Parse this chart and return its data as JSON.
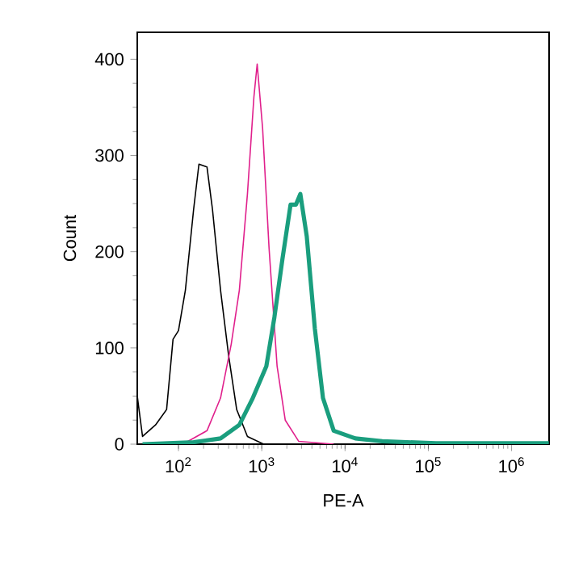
{
  "chart_data": {
    "type": "line",
    "xlabel": "PE-A",
    "ylabel": "Count",
    "log": "x",
    "xlim": [
      32,
      2820000
    ],
    "ylim": [
      0,
      428
    ],
    "xticks": [
      {
        "value": 100,
        "label": "10$^{2}$"
      },
      {
        "value": 1000,
        "label": "10$^{3}$"
      },
      {
        "value": 10000,
        "label": "10$^{4}$"
      },
      {
        "value": 100000,
        "label": "10$^{5}$"
      },
      {
        "value": 1000000,
        "label": "10$^{6}$"
      }
    ],
    "yticks": [
      0,
      100,
      200,
      300,
      400
    ],
    "grid": false,
    "marker": "none",
    "line_style": "solid",
    "series": [
      {
        "color": "#000000",
        "x": [
          32,
          37,
          53,
          72,
          86,
          100,
          121,
          152,
          176,
          220,
          256,
          320,
          400,
          500,
          673,
          1054
        ],
        "values": [
          50,
          8,
          20,
          36,
          109,
          118,
          160,
          244,
          291,
          288,
          244,
          160,
          92,
          36,
          8,
          0
        ]
      },
      {
        "color": "#e0208c",
        "x": [
          113,
          220,
          320,
          430,
          538,
          673,
          805,
          881,
          1024,
          1223,
          1528,
          1914,
          2773,
          7300
        ],
        "values": [
          0,
          14,
          48,
          104,
          160,
          260,
          361,
          395,
          328,
          204,
          81,
          25,
          3,
          0
        ]
      },
      {
        "color": "#1a9e7e",
        "x": [
          37,
          152,
          320,
          538,
          781,
          1135,
          1419,
          1775,
          2218,
          2576,
          2904,
          3470,
          4340,
          5430,
          7310,
          13300,
          28000,
          124000,
          2800000
        ],
        "values": [
          0,
          2,
          6,
          20,
          48,
          81,
          132,
          193,
          249,
          249,
          260,
          216,
          120,
          48,
          14,
          6,
          3,
          1,
          1
        ]
      }
    ]
  }
}
